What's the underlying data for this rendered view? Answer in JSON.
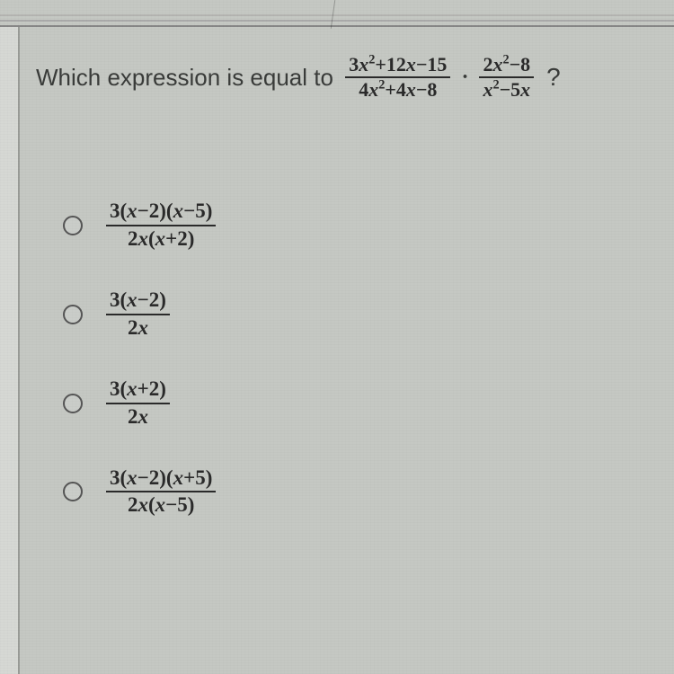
{
  "question": {
    "prompt": "Which expression is equal to",
    "frac1": {
      "num": "3x²+12x−15",
      "den": "4x²+4x−8"
    },
    "dot": "·",
    "frac2": {
      "num": "2x²−8",
      "den": "x²−5x"
    },
    "mark": "?"
  },
  "options": [
    {
      "num": "3(x−2)(x−5)",
      "den": "2x(x+2)"
    },
    {
      "num": "3(x−2)",
      "den": "2x"
    },
    {
      "num": "3(x+2)",
      "den": "2x"
    },
    {
      "num": "3(x−2)(x+5)",
      "den": "2x(x−5)"
    }
  ],
  "style": {
    "background": "#c5c8c3",
    "text_color": "#3a3c3a",
    "math_color": "#2a2a2a",
    "question_fontsize": 26,
    "math_fontsize": 22,
    "option_fontsize": 23,
    "radio_border": "#555",
    "font_family_text": "Arial",
    "font_family_math": "Times New Roman"
  }
}
